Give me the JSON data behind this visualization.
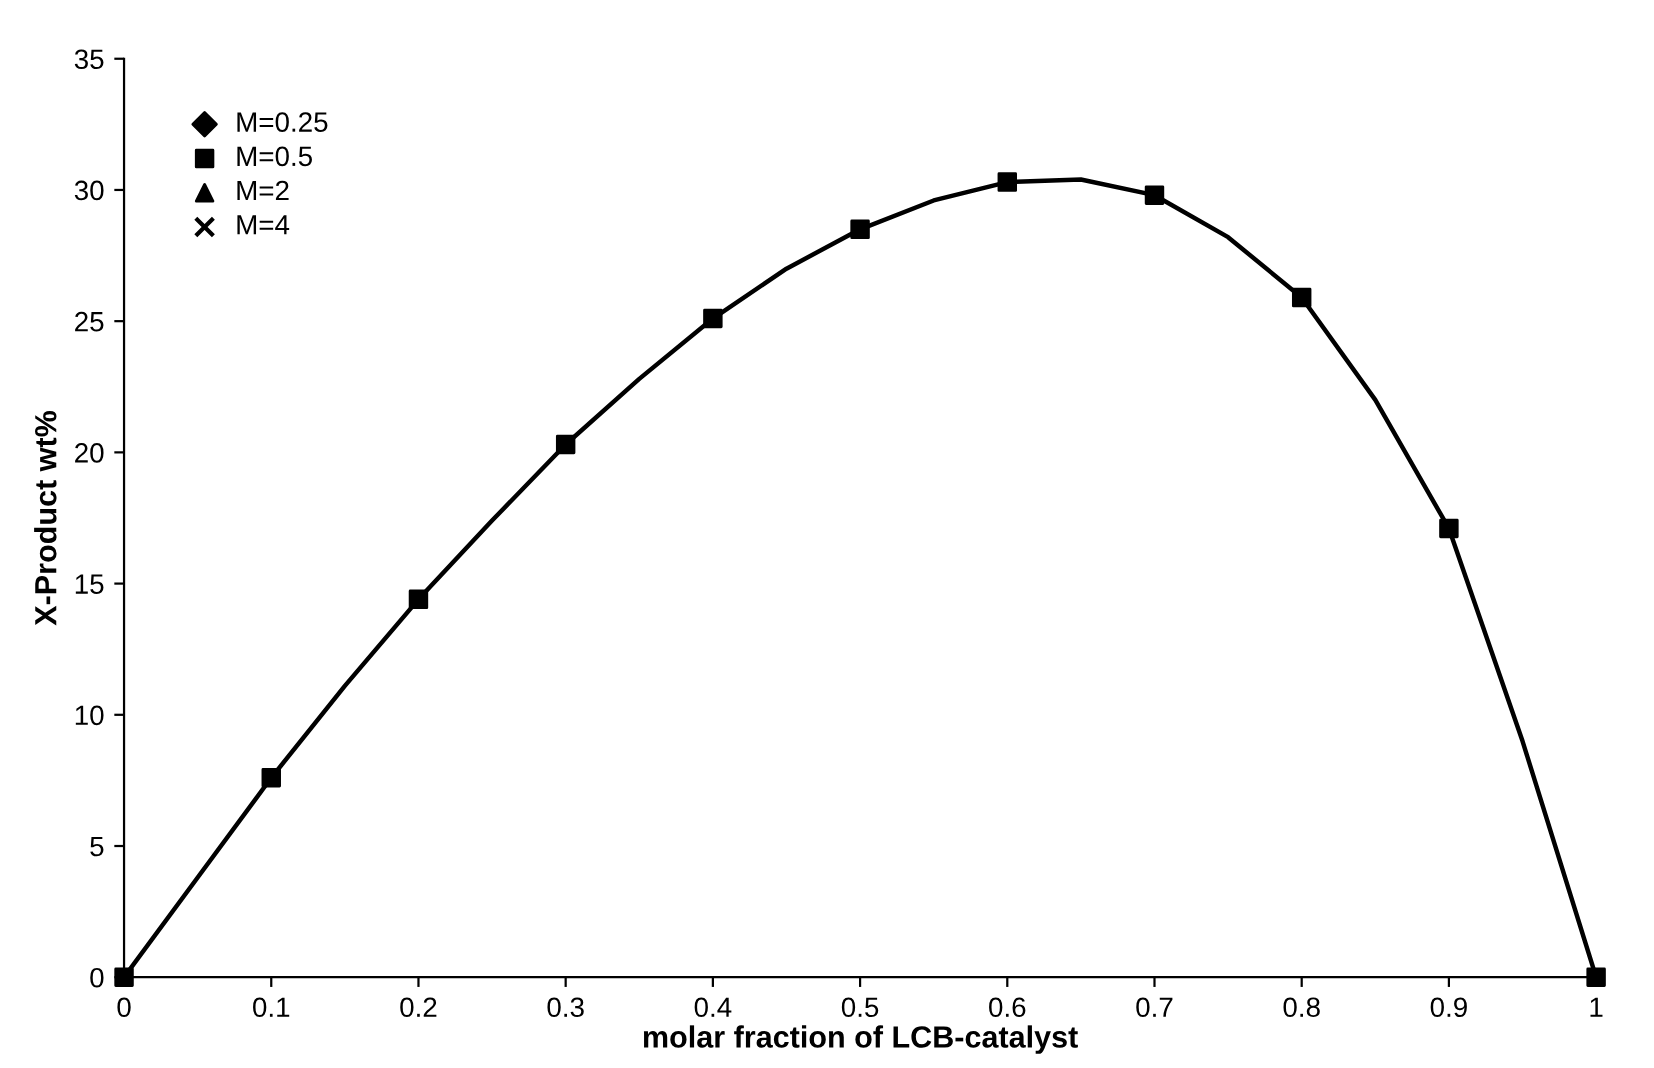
{
  "chart_data": {
    "type": "line",
    "xlabel": "molar fraction of LCB-catalyst",
    "ylabel": "X-Product wt%",
    "x": [
      0,
      0.1,
      0.2,
      0.3,
      0.4,
      0.5,
      0.6,
      0.7,
      0.8,
      0.9,
      1
    ],
    "series": [
      {
        "color": "#000000",
        "x": [
          0,
          0.05,
          0.1,
          0.15,
          0.2,
          0.25,
          0.3,
          0.35,
          0.4,
          0.45,
          0.5,
          0.55,
          0.6,
          0.65,
          0.7,
          0.75,
          0.8,
          0.85,
          0.9,
          0.95,
          1
        ],
        "values": [
          0,
          3.8,
          7.6,
          11.1,
          14.4,
          17.4,
          20.3,
          22.8,
          25.1,
          27.0,
          28.5,
          29.6,
          30.3,
          30.4,
          29.8,
          28.2,
          25.9,
          22.0,
          17.1,
          9.0,
          0
        ]
      },
      {
        "type": "scatter",
        "name": "M=0.25",
        "color": "#000000",
        "marker": "diamond",
        "values": [
          null,
          null,
          null,
          null,
          null,
          null,
          null,
          null,
          null,
          null,
          null
        ]
      },
      {
        "type": "scatter",
        "name": "M=0.5",
        "color": "#000000",
        "marker": "square",
        "values": [
          0,
          7.6,
          14.4,
          20.3,
          25.1,
          28.5,
          30.3,
          29.8,
          25.9,
          17.1,
          0
        ]
      },
      {
        "type": "scatter",
        "name": "M=2",
        "color": "#000000",
        "marker": "triangle",
        "values": [
          null,
          null,
          null,
          null,
          null,
          null,
          null,
          null,
          null,
          null,
          null
        ]
      },
      {
        "type": "scatter",
        "name": "M=4",
        "color": "#000000",
        "marker": "cross",
        "values": [
          null,
          null,
          null,
          null,
          null,
          null,
          null,
          null,
          null,
          null,
          null
        ]
      }
    ],
    "xlim": [
      0,
      1
    ],
    "xticks": [
      0,
      0.1,
      0.2,
      0.3,
      0.4,
      0.5,
      0.6,
      0.7,
      0.8,
      0.9,
      1
    ],
    "ylim": [
      0,
      35
    ],
    "yticks": [
      0,
      5,
      10,
      15,
      20,
      25,
      30,
      35
    ],
    "grid": false,
    "legend": "top left",
    "line_style": "solid"
  }
}
